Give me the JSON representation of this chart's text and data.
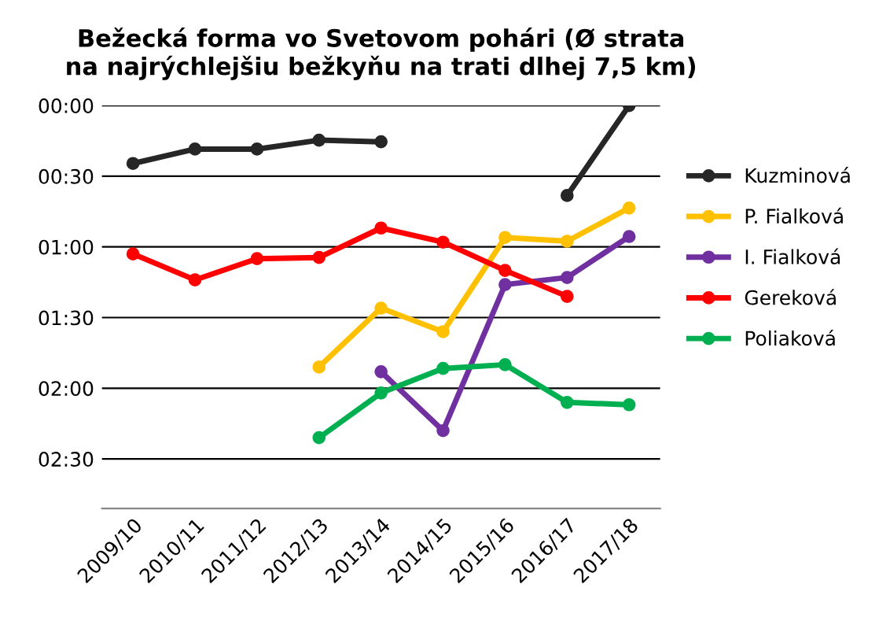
{
  "chart_data": {
    "type": "line",
    "title": "Bežecká forma vo Svetovom pohári (Ø strata\nna najrýchlejšiu bežkyňu na trati dlhej 7,5 km)",
    "categories": [
      "2009/10",
      "2010/11",
      "2011/12",
      "2012/13",
      "2013/14",
      "2014/15",
      "2015/16",
      "2016/17",
      "2017/18"
    ],
    "series": [
      {
        "name": "Kuzminová",
        "color": "#262626",
        "values": [
          24.6,
          18.5,
          18.5,
          14.7,
          15.4,
          null,
          null,
          38.2,
          0
        ]
      },
      {
        "name": "P. Fialková",
        "color": "#ffc000",
        "values": [
          null,
          null,
          null,
          111,
          86,
          96,
          56,
          57.6,
          43.5
        ]
      },
      {
        "name": "I. Fialková",
        "color": "#7030a0",
        "values": [
          null,
          null,
          null,
          null,
          113,
          138,
          76,
          73,
          55.6
        ]
      },
      {
        "name": "Gereková",
        "color": "#ff0000",
        "values": [
          63,
          74,
          65,
          64.5,
          52,
          58,
          70,
          81,
          null
        ]
      },
      {
        "name": "Poliaková",
        "color": "#00b050",
        "values": [
          null,
          null,
          null,
          141,
          122,
          111.6,
          110,
          126,
          127
        ]
      }
    ],
    "ylim": [
      171,
      0
    ],
    "yticks": [
      {
        "value": 0,
        "label": "00:00"
      },
      {
        "value": 30,
        "label": "00:30"
      },
      {
        "value": 60,
        "label": "01:00"
      },
      {
        "value": 90,
        "label": "01:30"
      },
      {
        "value": 120,
        "label": "02:00"
      },
      {
        "value": 150,
        "label": "02:30"
      }
    ],
    "grid": "y",
    "legend": "right",
    "marker": "circle",
    "line_style": "solid"
  }
}
